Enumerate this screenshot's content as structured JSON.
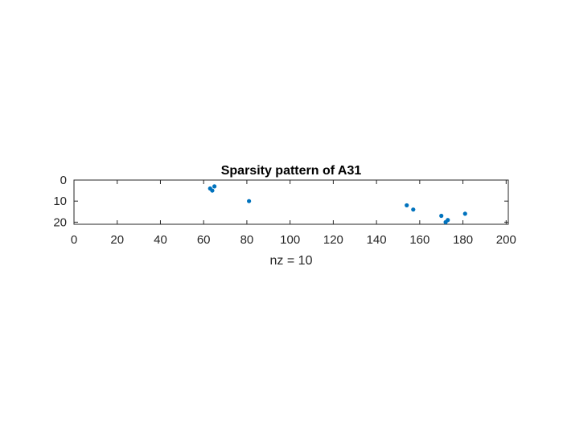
{
  "chart_data": {
    "type": "scatter",
    "title": "Sparsity pattern of A31",
    "xlabel": "nz = 10",
    "ylabel": "",
    "xlim": [
      0,
      201
    ],
    "ylim": [
      0,
      21
    ],
    "y_reversed": true,
    "grid": false,
    "x_ticks": [
      0,
      20,
      40,
      60,
      80,
      100,
      120,
      140,
      160,
      180,
      200
    ],
    "y_ticks": [
      0,
      10,
      20
    ],
    "series": [
      {
        "points": [
          {
            "x": 63,
            "y": 4
          },
          {
            "x": 64,
            "y": 5
          },
          {
            "x": 65,
            "y": 3
          },
          {
            "x": 81,
            "y": 10
          },
          {
            "x": 154,
            "y": 12
          },
          {
            "x": 157,
            "y": 14
          },
          {
            "x": 170,
            "y": 17
          },
          {
            "x": 172,
            "y": 20
          },
          {
            "x": 173,
            "y": 19
          },
          {
            "x": 181,
            "y": 16
          }
        ]
      }
    ],
    "colors": {
      "marker": "#0072BD",
      "axis": "#262626"
    }
  }
}
